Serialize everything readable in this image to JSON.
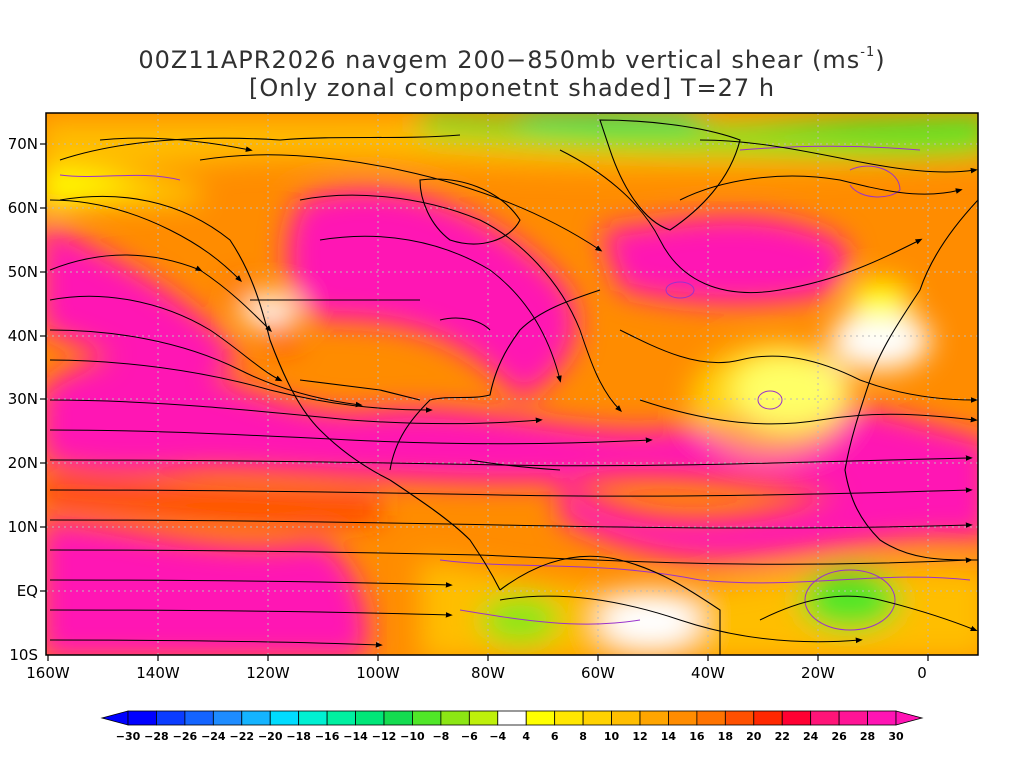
{
  "title": {
    "line1_prefix": "00Z11APR2026 navgem 200−850mb vertical shear (ms",
    "line1_exp": "-1",
    "line1_suffix": ")",
    "line2": "[Only zonal componetnt shaded] T=27 h"
  },
  "map": {
    "lon_range": [
      -160,
      10
    ],
    "lat_range": [
      -10,
      75
    ],
    "gridlines": "dotted",
    "y_ticks": [
      "70N",
      "60N",
      "50N",
      "40N",
      "30N",
      "20N",
      "10N",
      "EQ",
      "10S"
    ],
    "x_ticks": [
      "160W",
      "140W",
      "120W",
      "100W",
      "80W",
      "60W",
      "40W",
      "20W",
      "0"
    ]
  },
  "colorbar": {
    "labels": [
      "-30",
      "-28",
      "-26",
      "-24",
      "-22",
      "-20",
      "-18",
      "-16",
      "-14",
      "-12",
      "-10",
      "-8",
      "-6",
      "-4",
      "4",
      "6",
      "8",
      "10",
      "12",
      "14",
      "16",
      "18",
      "20",
      "22",
      "24",
      "26",
      "28",
      "30"
    ],
    "colors": [
      "#0000ff",
      "#0a3cff",
      "#1464ff",
      "#1e8cff",
      "#14b4ff",
      "#00dcff",
      "#00f0d2",
      "#00f0a0",
      "#00e678",
      "#14dc50",
      "#50e628",
      "#8ce614",
      "#bef00a",
      "#ffffff",
      "#ffff00",
      "#ffe600",
      "#ffd200",
      "#ffbe00",
      "#ffa500",
      "#ff8c00",
      "#ff7300",
      "#ff5000",
      "#ff2800",
      "#ff0032",
      "#ff1478",
      "#ff1496",
      "#ff14b4"
    ]
  }
}
